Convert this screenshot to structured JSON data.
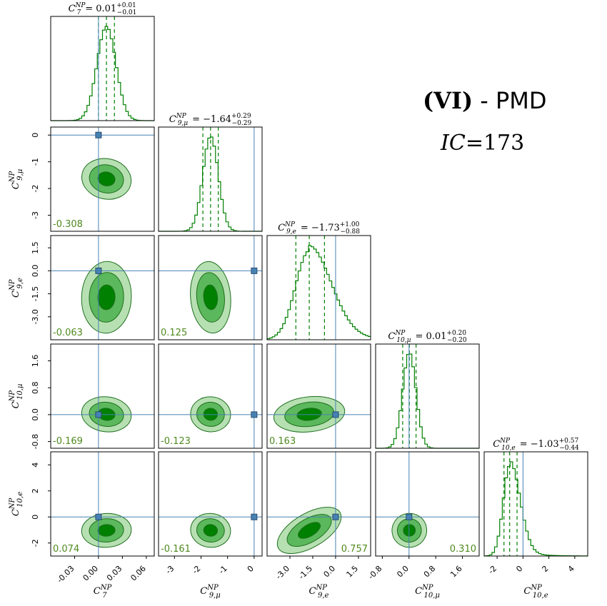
{
  "header": {
    "model_bold": "(VI)",
    "model_rest": " - PMD",
    "ic_label": "IC",
    "ic_eq": "=",
    "ic_value": "173"
  },
  "colors": {
    "dark": "#008000",
    "mid": "#5cb85c",
    "light": "#b7e0b2",
    "line": "#1f6f1f",
    "truth": "#4682b4",
    "corr": "#4f8a1e"
  },
  "chart_data": {
    "type": "corner",
    "grid": false,
    "parameters": [
      {
        "key": "C7",
        "sym": "C",
        "sub": "7",
        "sup": "NP",
        "range": [
          -0.06,
          0.07
        ],
        "ticks": [
          -0.03,
          0.0,
          0.03,
          0.06
        ],
        "tick_labels": [
          "-0.03",
          "0.00",
          "0.03",
          "0.06"
        ],
        "truth": 0.0,
        "median": 0.01,
        "q_low": 0.0,
        "q_high": 0.02,
        "sigma": 0.012,
        "skew": 0,
        "title_value": "0.01",
        "title_plus": "+0.01",
        "title_minus": "−0.01"
      },
      {
        "key": "C9mu",
        "sym": "C",
        "sub": "9,μ",
        "sup": "NP",
        "range": [
          -3.6,
          0.3
        ],
        "ticks": [
          -3,
          -2,
          -1,
          0
        ],
        "tick_labels": [
          "-3",
          "-2",
          "-1",
          "0"
        ],
        "truth": 0.0,
        "median": -1.64,
        "q_low": -1.93,
        "q_high": -1.35,
        "sigma": 0.29,
        "skew": 0,
        "title_value": "−1.64",
        "title_plus": "+0.29",
        "title_minus": "−0.29"
      },
      {
        "key": "C9e",
        "sym": "C",
        "sub": "9,e",
        "sup": "NP",
        "range": [
          -4.5,
          2.3
        ],
        "ticks": [
          -3.0,
          -1.5,
          0.0,
          1.5
        ],
        "tick_labels": [
          "-3.0",
          "-1.5",
          "0.0",
          "1.5"
        ],
        "truth": 0.0,
        "median": -1.73,
        "q_low": -2.61,
        "q_high": -0.73,
        "sigma": 0.9,
        "skew": 1,
        "title_value": "−1.73",
        "title_plus": "+1.00",
        "title_minus": "−0.88"
      },
      {
        "key": "C10mu",
        "sym": "C",
        "sub": "10,μ",
        "sup": "NP",
        "range": [
          -1.0,
          2.1
        ],
        "ticks": [
          -0.8,
          0.0,
          0.8,
          1.6
        ],
        "tick_labels": [
          "-0.8",
          "0.0",
          "0.8",
          "1.6"
        ],
        "truth": 0.0,
        "median": 0.01,
        "q_low": -0.19,
        "q_high": 0.21,
        "sigma": 0.2,
        "skew": 0,
        "title_value": "0.01",
        "title_plus": "+0.20",
        "title_minus": "−0.20"
      },
      {
        "key": "C10e",
        "sym": "C",
        "sub": "10,e",
        "sup": "NP",
        "range": [
          -3.0,
          5.0
        ],
        "ticks": [
          -2,
          0,
          2,
          4
        ],
        "tick_labels": [
          "-2",
          "0",
          "2",
          "4"
        ],
        "truth": 0.0,
        "median": -1.03,
        "q_low": -1.47,
        "q_high": -0.46,
        "sigma": 0.5,
        "skew": 1,
        "title_value": "−1.03",
        "title_plus": "+0.57",
        "title_minus": "−0.44"
      }
    ],
    "left_axis": {
      "1": {
        "ticks": [
          0,
          -1,
          -2,
          -3
        ],
        "tick_labels": [
          "0",
          "-1",
          "-2",
          "-3"
        ]
      },
      "2": {
        "ticks": [
          1.5,
          0.0,
          -1.5,
          -3.0
        ],
        "tick_labels": [
          "1.5",
          "0.0",
          "-1.5",
          "-3.0"
        ]
      },
      "3": {
        "ticks": [
          1.6,
          0.8,
          0.0,
          -0.8
        ],
        "tick_labels": [
          "1.6",
          "0.8",
          "0.0",
          "-0.8"
        ]
      },
      "4": {
        "ticks": [
          4,
          2,
          0,
          -2
        ],
        "tick_labels": [
          "4",
          "2",
          "0",
          "-2"
        ]
      }
    },
    "correlations": [
      {
        "row": 1,
        "col": 0,
        "value": "-0.308",
        "pos": "bl"
      },
      {
        "row": 2,
        "col": 0,
        "value": "-0.063",
        "pos": "bl"
      },
      {
        "row": 2,
        "col": 1,
        "value": "0.125",
        "pos": "bl"
      },
      {
        "row": 3,
        "col": 0,
        "value": "-0.169",
        "pos": "bl"
      },
      {
        "row": 3,
        "col": 1,
        "value": "-0.123",
        "pos": "bl"
      },
      {
        "row": 3,
        "col": 2,
        "value": "0.163",
        "pos": "bl"
      },
      {
        "row": 4,
        "col": 0,
        "value": "0.074",
        "pos": "bl"
      },
      {
        "row": 4,
        "col": 1,
        "value": "-0.161",
        "pos": "bl"
      },
      {
        "row": 4,
        "col": 2,
        "value": "0.757",
        "pos": "br"
      },
      {
        "row": 4,
        "col": 3,
        "value": "0.310",
        "pos": "br"
      }
    ]
  }
}
